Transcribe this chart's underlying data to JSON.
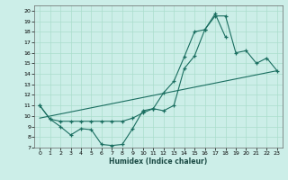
{
  "title": "",
  "xlabel": "Humidex (Indice chaleur)",
  "bg_color": "#cceee8",
  "grid_color": "#aaddcc",
  "line_color": "#1a6e60",
  "xlim": [
    -0.5,
    23.5
  ],
  "ylim": [
    7,
    20.5
  ],
  "xticks": [
    0,
    1,
    2,
    3,
    4,
    5,
    6,
    7,
    8,
    9,
    10,
    11,
    12,
    13,
    14,
    15,
    16,
    17,
    18,
    19,
    20,
    21,
    22,
    23
  ],
  "yticks": [
    7,
    8,
    9,
    10,
    11,
    12,
    13,
    14,
    15,
    16,
    17,
    18,
    19,
    20
  ],
  "line1_x": [
    0,
    1,
    2,
    3,
    4,
    5,
    6,
    7,
    8,
    9,
    10,
    11,
    12,
    13,
    14,
    15,
    16,
    17,
    18
  ],
  "line1_y": [
    11.0,
    9.7,
    9.0,
    8.2,
    8.8,
    8.7,
    7.3,
    7.2,
    7.3,
    8.8,
    10.5,
    10.7,
    12.2,
    13.3,
    15.6,
    18.0,
    18.2,
    19.7,
    17.5
  ],
  "line2_x": [
    0,
    1,
    2,
    3,
    4,
    5,
    6,
    7,
    8,
    9,
    10,
    11,
    12,
    13,
    14,
    15,
    16,
    17,
    18,
    19,
    20,
    21,
    22,
    23
  ],
  "line2_y": [
    11.0,
    9.7,
    9.5,
    9.5,
    9.5,
    9.5,
    9.5,
    9.5,
    9.5,
    9.8,
    10.3,
    10.7,
    10.5,
    11.0,
    14.5,
    15.7,
    18.2,
    19.5,
    19.5,
    16.0,
    16.2,
    15.0,
    15.5,
    14.3
  ],
  "line3_x": [
    0,
    23
  ],
  "line3_y": [
    9.8,
    14.3
  ]
}
